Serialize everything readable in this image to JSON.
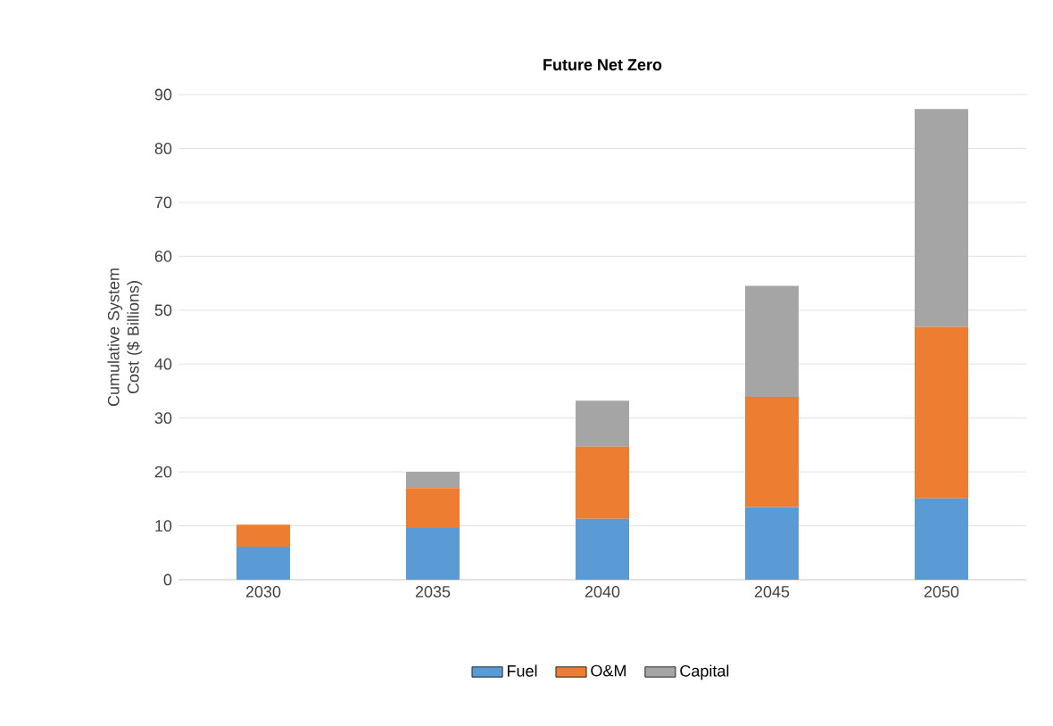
{
  "chart_data": {
    "type": "bar",
    "stacked": true,
    "title": "Future Net Zero",
    "ylabel": "Cumulative System Cost ($ Billions)",
    "categories": [
      "2030",
      "2035",
      "2040",
      "2045",
      "2050"
    ],
    "series": [
      {
        "name": "Fuel",
        "color": "#5b9bd5",
        "values": [
          6.1,
          9.6,
          11.3,
          13.5,
          15.1
        ]
      },
      {
        "name": "O&M",
        "color": "#ed7d31",
        "values": [
          4.1,
          7.4,
          13.4,
          20.4,
          31.8
        ]
      },
      {
        "name": "Capital",
        "color": "#a5a5a5",
        "values": [
          0,
          3.0,
          8.5,
          20.6,
          40.4
        ]
      }
    ],
    "ylim": [
      0,
      90
    ],
    "yticks": [
      0,
      10,
      20,
      30,
      40,
      50,
      60,
      70,
      80,
      90
    ],
    "grid": "y",
    "legend": "bottom"
  }
}
